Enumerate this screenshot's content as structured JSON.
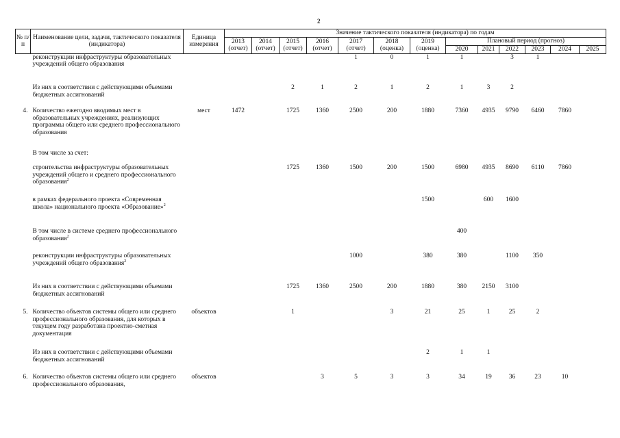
{
  "page_number": "2",
  "header": {
    "num": "№ п/п",
    "name": "Наименование цели, задачи, тактического показателя (индикатора)",
    "unit": "Единица измерения",
    "values_title": "Значение тактического показателя (индикатора) по годам",
    "plan_title": "Плановый период (прогноз)",
    "years": [
      {
        "year": "2013",
        "note": "(отчет)"
      },
      {
        "year": "2014",
        "note": "(отчет)"
      },
      {
        "year": "2015",
        "note": "(отчет)"
      },
      {
        "year": "2016",
        "note": "(отчет)"
      },
      {
        "year": "2017",
        "note": "(отчет)"
      },
      {
        "year": "2018",
        "note": "(оценка)"
      },
      {
        "year": "2019",
        "note": "(оценка)"
      }
    ],
    "plan_years": [
      "2020",
      "2021",
      "2022",
      "2023",
      "2024",
      "2025"
    ]
  },
  "rows": [
    {
      "num": "",
      "name": "реконструкции инфраструктуры образовательных учреждений общего образования",
      "sup": "",
      "unit": "",
      "values": [
        "",
        "",
        "",
        "",
        "1",
        "0",
        "1",
        "1",
        "",
        "3",
        "1",
        "",
        ""
      ]
    },
    {
      "num": "",
      "name": "Из них в соответствии с действующими объемами бюджетных ассигнований",
      "sup": "",
      "unit": "",
      "values": [
        "",
        "",
        "2",
        "1",
        "2",
        "1",
        "2",
        "1",
        "3",
        "2",
        "",
        "",
        ""
      ]
    },
    {
      "num": "4.",
      "name": "Количество ежегодно вводимых мест в образовательных учреждениях, реализующих программы общего или среднего профессионального образования",
      "sup": "",
      "unit": "мест",
      "values": [
        "1472",
        "",
        "1725",
        "1360",
        "2500",
        "200",
        "1880",
        "7360",
        "4935",
        "9790",
        "6460",
        "7860",
        ""
      ]
    },
    {
      "num": "",
      "name": "В том числе за счет:",
      "sup": "",
      "unit": "",
      "values": [
        "",
        "",
        "",
        "",
        "",
        "",
        "",
        "",
        "",
        "",
        "",
        "",
        ""
      ]
    },
    {
      "num": "",
      "name": "строительства инфраструктуры образовательных учреждений общего и среднего профессионального образования",
      "sup": "2",
      "unit": "",
      "values": [
        "",
        "",
        "1725",
        "1360",
        "1500",
        "200",
        "1500",
        "6980",
        "4935",
        "8690",
        "6110",
        "7860",
        ""
      ]
    },
    {
      "num": "",
      "name": "в рамках федерального проекта «Современная школа» национального проекта «Образование»",
      "sup": "2",
      "unit": "",
      "values": [
        "",
        "",
        "",
        "",
        "",
        "",
        "1500",
        "",
        "600",
        "1600",
        "",
        "",
        ""
      ]
    },
    {
      "num": "",
      "name": "В том числе в системе среднего профессионального образования",
      "sup": "2",
      "unit": "",
      "values": [
        "",
        "",
        "",
        "",
        "",
        "",
        "",
        "400",
        "",
        "",
        "",
        "",
        ""
      ]
    },
    {
      "num": "",
      "name": "реконструкции инфраструктуры образовательных учреждений общего образования",
      "sup": "2",
      "unit": "",
      "values": [
        "",
        "",
        "",
        "",
        "1000",
        "",
        "380",
        "380",
        "",
        "1100",
        "350",
        "",
        ""
      ]
    },
    {
      "num": "",
      "name": "Из них в соответствии с действующими объемами бюджетных ассигнований",
      "sup": "",
      "unit": "",
      "values": [
        "",
        "",
        "1725",
        "1360",
        "2500",
        "200",
        "1880",
        "380",
        "2150",
        "3100",
        "",
        "",
        ""
      ]
    },
    {
      "num": "5.",
      "name": "Количество объектов системы общего или среднего профессионального образования, для которых в текущем году разработана проектно-сметная документация",
      "sup": "",
      "unit": "объектов",
      "values": [
        "",
        "",
        "1",
        "",
        "",
        "3",
        "21",
        "25",
        "1",
        "25",
        "2",
        "",
        ""
      ]
    },
    {
      "num": "",
      "name": "Из них в соответствии с действующими объемами бюджетных ассигнований",
      "sup": "",
      "unit": "",
      "values": [
        "",
        "",
        "",
        "",
        "",
        "",
        "2",
        "1",
        "1",
        "",
        "",
        "",
        ""
      ]
    },
    {
      "num": "6.",
      "name": "Количество объектов системы общего или среднего профессионального образования,",
      "sup": "",
      "unit": "объектов",
      "values": [
        "",
        "",
        "",
        "3",
        "5",
        "3",
        "3",
        "34",
        "19",
        "36",
        "23",
        "10",
        ""
      ]
    }
  ]
}
